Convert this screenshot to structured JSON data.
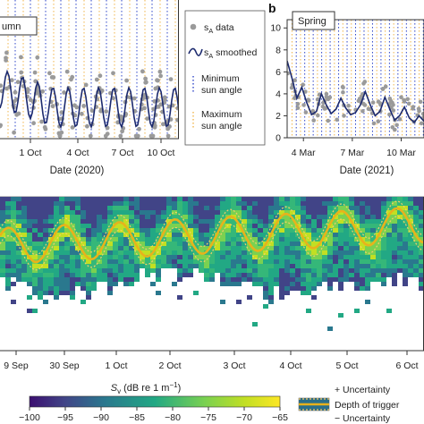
{
  "colors": {
    "data_points": "#9a9a9a",
    "smoothed_line": "#1c2a6e",
    "min_sun_line": "#2d44c8",
    "max_sun_line": "#f0b54a",
    "trigger_line": "#e8b21c",
    "uncertainty_line": "#f5cf6a",
    "colormap": [
      "#3b0f70",
      "#443a83",
      "#31688e",
      "#21918c",
      "#35b779",
      "#90d743",
      "#fde725"
    ]
  },
  "legend": {
    "data_label_main": "s",
    "data_label_sub": "A",
    "data_label_rest": " data",
    "smoothed_label_main": "s",
    "smoothed_label_sub": "A",
    "smoothed_label_rest": " smoothed",
    "min_sun_line1": "Minimum",
    "min_sun_line2": "sun angle",
    "max_sun_line1": "Maximum",
    "max_sun_line2": "sun angle"
  },
  "panel_a": {
    "season_label": "umn",
    "xlabel": "Date (2020)",
    "x_ticks": [
      "1 Oct",
      "4 Oct",
      "7 Oct",
      "10 Oct"
    ]
  },
  "panel_b": {
    "letter": "b",
    "season_label": "Spring",
    "xlabel": "Date (2021)",
    "x_ticks": [
      "4 Mar",
      "7 Mar",
      "10 Mar"
    ],
    "y_ticks": [
      "0",
      "2",
      "4",
      "6",
      "8",
      "10"
    ]
  },
  "panel_c": {
    "x_ticks": [
      "9 Sep",
      "30 Sep",
      "1 Oct",
      "2 Oct",
      "3 Oct",
      "4 Oct",
      "5 Oct",
      "6 Oct"
    ]
  },
  "colorbar": {
    "label_main": "S",
    "label_sub": "v",
    "label_rest": " (dB re 1 m",
    "label_sup": "−1",
    "label_end": ")",
    "ticks": [
      "−100",
      "−95",
      "−90",
      "−85",
      "−80",
      "−75",
      "−70",
      "−65"
    ],
    "vmin": -100,
    "vmax": -65
  },
  "legend_c": {
    "plus_uncertainty": "+ Uncertainty",
    "depth_of_trigger": "Depth of trigger",
    "minus_uncertainty": "− Uncertainty"
  },
  "chart_data": [
    {
      "type": "line",
      "panel": "a",
      "xlabel": "Date (2020)",
      "x_ticks": [
        "1 Oct",
        "4 Oct",
        "7 Oct",
        "10 Oct"
      ],
      "series": [
        {
          "name": "sA data",
          "kind": "scatter"
        },
        {
          "name": "sA smoothed",
          "kind": "line"
        }
      ],
      "vertical_markers": [
        "Minimum sun angle",
        "Maximum sun angle"
      ]
    },
    {
      "type": "line",
      "panel": "b",
      "xlabel": "Date (2021)",
      "x_ticks": [
        "4 Mar",
        "7 Mar",
        "10 Mar"
      ],
      "ylim": [
        0,
        10
      ],
      "smoothed": [
        {
          "x": 3.0,
          "y": 7.0
        },
        {
          "x": 3.3,
          "y": 5.4
        },
        {
          "x": 3.6,
          "y": 3.6
        },
        {
          "x": 3.9,
          "y": 4.6
        },
        {
          "x": 4.2,
          "y": 3.2
        },
        {
          "x": 4.5,
          "y": 2.1
        },
        {
          "x": 4.8,
          "y": 2.4
        },
        {
          "x": 5.1,
          "y": 4.0
        },
        {
          "x": 5.4,
          "y": 3.0
        },
        {
          "x": 5.7,
          "y": 2.2
        },
        {
          "x": 6.0,
          "y": 2.6
        },
        {
          "x": 6.3,
          "y": 3.6
        },
        {
          "x": 6.6,
          "y": 2.7
        },
        {
          "x": 6.9,
          "y": 2.1
        },
        {
          "x": 7.2,
          "y": 2.3
        },
        {
          "x": 7.5,
          "y": 3.0
        },
        {
          "x": 7.8,
          "y": 4.2
        },
        {
          "x": 8.1,
          "y": 3.0
        },
        {
          "x": 8.4,
          "y": 2.0
        },
        {
          "x": 8.7,
          "y": 2.4
        },
        {
          "x": 9.0,
          "y": 3.7
        },
        {
          "x": 9.3,
          "y": 2.6
        },
        {
          "x": 9.6,
          "y": 1.6
        },
        {
          "x": 9.9,
          "y": 2.0
        },
        {
          "x": 10.2,
          "y": 2.8
        },
        {
          "x": 10.5,
          "y": 1.8
        },
        {
          "x": 10.8,
          "y": 1.4
        },
        {
          "x": 11.1,
          "y": 2.0
        },
        {
          "x": 11.4,
          "y": 1.5
        }
      ]
    },
    {
      "type": "heatmap",
      "panel": "c",
      "x_ticks": [
        "9 Sep",
        "30 Sep",
        "1 Oct",
        "2 Oct",
        "3 Oct",
        "4 Oct",
        "5 Oct",
        "6 Oct"
      ],
      "colorbar_label": "Sv (dB re 1 m−1)",
      "vmin": -100,
      "vmax": -65,
      "overlay_series": [
        "+ Uncertainty",
        "Depth of trigger",
        "− Uncertainty"
      ]
    }
  ]
}
